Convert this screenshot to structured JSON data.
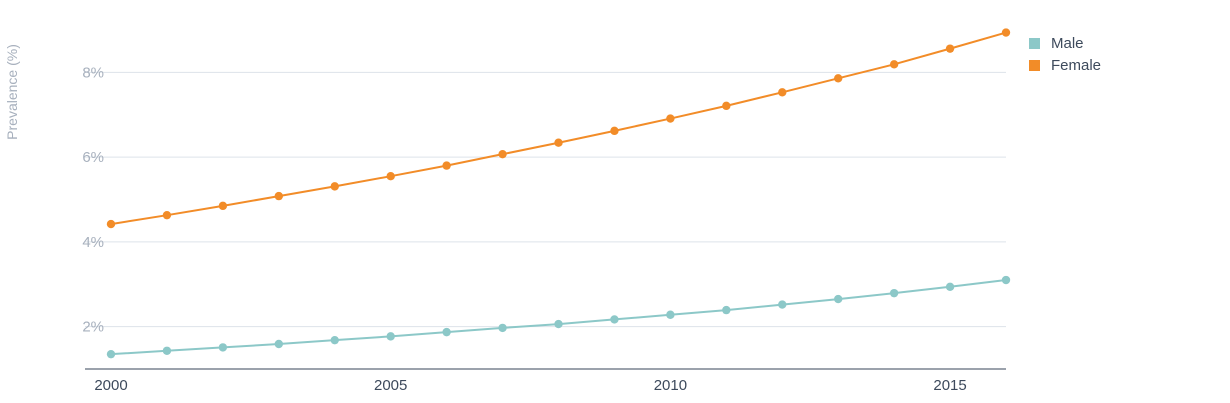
{
  "chart_data": {
    "type": "line",
    "title": "",
    "xlabel": "",
    "ylabel": "Prevalence (%)",
    "x": [
      2000,
      2001,
      2002,
      2003,
      2004,
      2005,
      2006,
      2007,
      2008,
      2009,
      2010,
      2011,
      2012,
      2013,
      2014,
      2015,
      2016
    ],
    "x_ticks": [
      "2000",
      "2005",
      "2010",
      "2015"
    ],
    "y_ticks": [
      "2%",
      "4%",
      "6%",
      "8%"
    ],
    "ylim": [
      1.0,
      9.0
    ],
    "grid": true,
    "legend": "top-right",
    "series": [
      {
        "name": "Male",
        "color": "#8cc8c8",
        "values": [
          1.35,
          1.43,
          1.51,
          1.59,
          1.68,
          1.77,
          1.87,
          1.97,
          2.06,
          2.17,
          2.28,
          2.39,
          2.52,
          2.65,
          2.79,
          2.94,
          3.1
        ]
      },
      {
        "name": "Female",
        "color": "#f28c28",
        "values": [
          4.42,
          4.63,
          4.85,
          5.08,
          5.31,
          5.55,
          5.8,
          6.07,
          6.34,
          6.62,
          6.91,
          7.21,
          7.53,
          7.86,
          8.19,
          8.56,
          8.94
        ]
      }
    ]
  }
}
